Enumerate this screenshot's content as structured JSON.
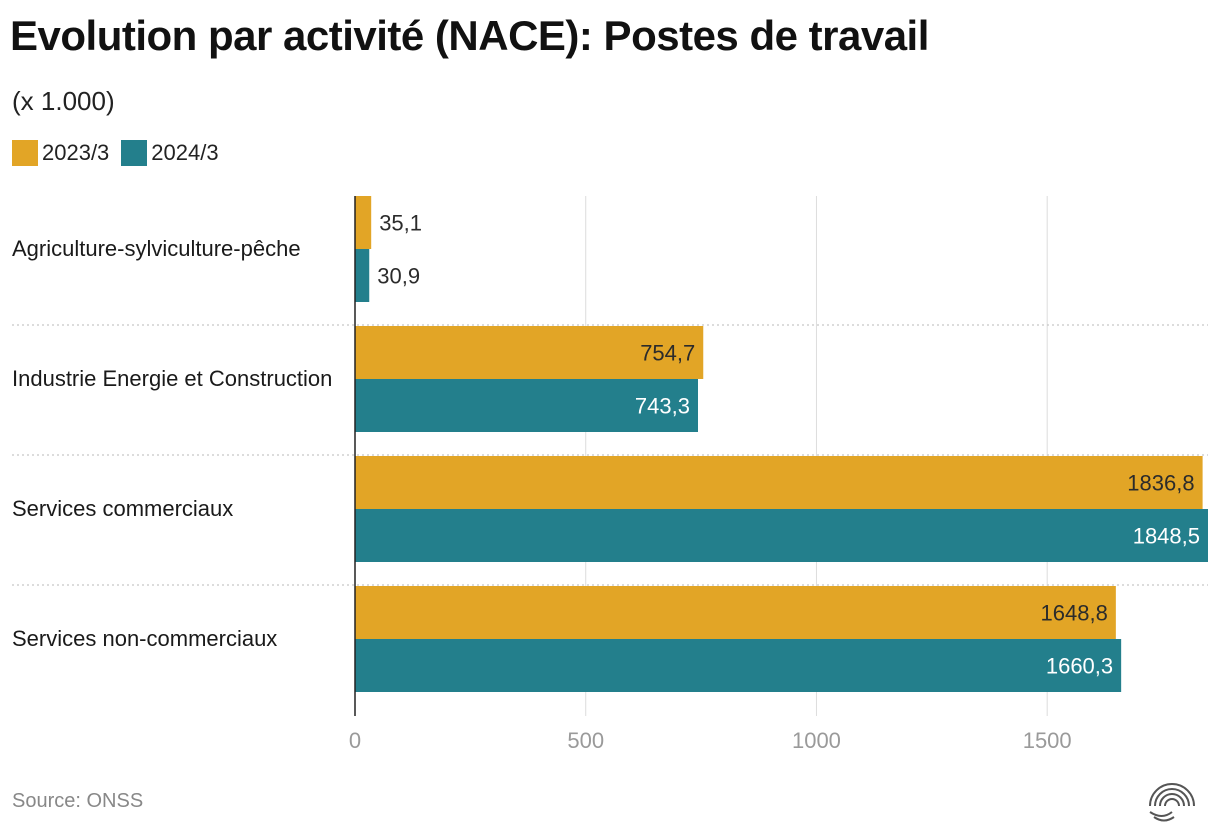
{
  "header": {
    "title": "Evolution par activité (NACE): Postes de travail",
    "unit_note": "(x 1.000)"
  },
  "footer": {
    "source": "Source: ONSS"
  },
  "colors": {
    "series_2023": "#E2A526",
    "series_2024": "#237F8C"
  },
  "icons": {
    "brand_logo": "concentric-arcs-logo-icon"
  },
  "chart_data": {
    "type": "bar",
    "orientation": "horizontal",
    "title": "Evolution par activité (NACE): Postes de travail",
    "subtitle": "(x 1.000)",
    "categories": [
      "Agriculture-sylviculture-pêche",
      "Industrie Energie et Construction",
      "Services commerciaux",
      "Services non-commerciaux"
    ],
    "series": [
      {
        "name": "2023/3",
        "values": [
          35.1,
          754.7,
          1836.8,
          1648.8
        ],
        "labels": [
          "35,1",
          "754,7",
          "1836,8",
          "1648,8"
        ]
      },
      {
        "name": "2024/3",
        "values": [
          30.9,
          743.3,
          1848.5,
          1660.3
        ],
        "labels": [
          "30,9",
          "743,3",
          "1848,5",
          "1660,3"
        ]
      }
    ],
    "xlim": [
      0,
      1848.5
    ],
    "xticks": [
      0,
      500,
      1000,
      1500
    ],
    "xtick_labels": [
      "0",
      "500",
      "1000",
      "1500"
    ],
    "xlabel": "",
    "ylabel": "",
    "grid": "vertical",
    "legend_position": "top-left"
  }
}
